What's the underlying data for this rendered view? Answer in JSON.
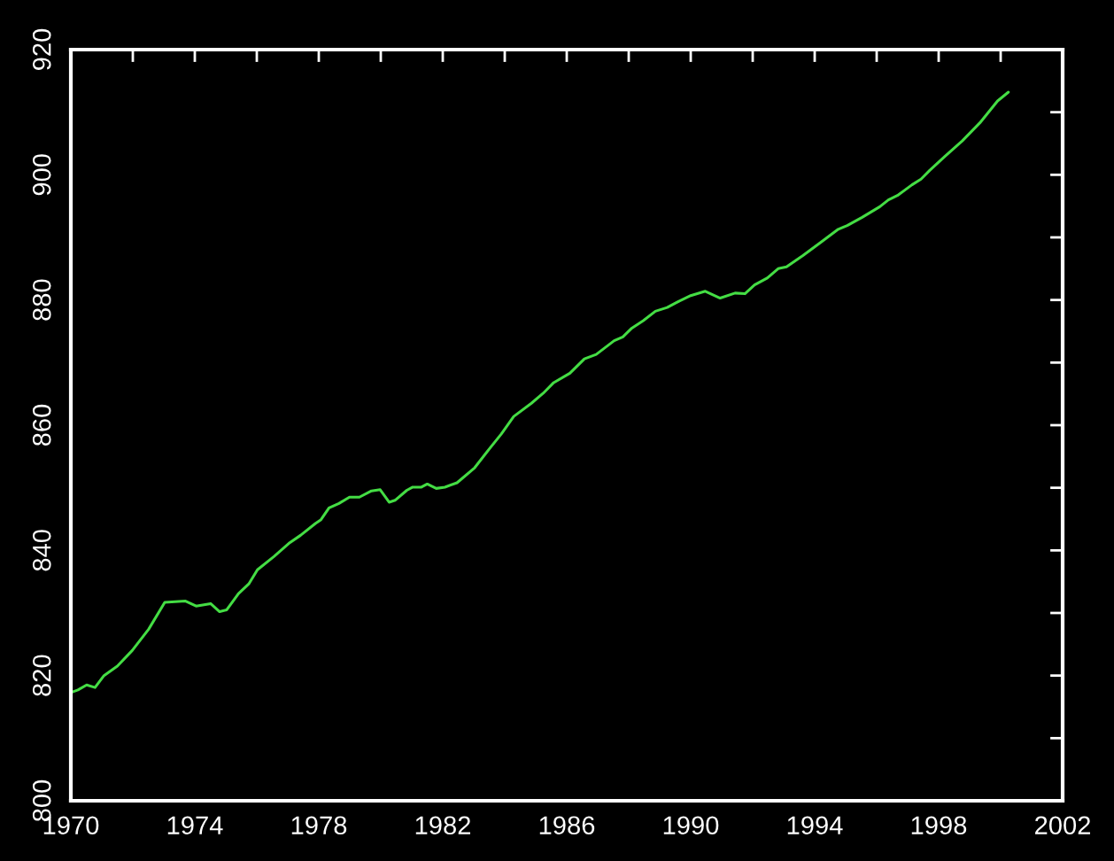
{
  "chart_data": {
    "type": "line",
    "x": [
      1970.0,
      1970.23,
      1970.51,
      1970.78,
      1971.07,
      1971.5,
      1971.98,
      1972.51,
      1973.03,
      1973.7,
      1974.04,
      1974.51,
      1974.8,
      1975.03,
      1975.41,
      1975.75,
      1976.02,
      1976.55,
      1977.03,
      1977.41,
      1977.89,
      1978.07,
      1978.33,
      1978.65,
      1978.99,
      1979.31,
      1979.7,
      1979.98,
      1980.27,
      1980.46,
      1980.84,
      1981.03,
      1981.31,
      1981.5,
      1981.79,
      1982.07,
      1982.46,
      1983.03,
      1983.5,
      1983.89,
      1984.29,
      1984.86,
      1985.24,
      1985.58,
      1986.1,
      1986.57,
      1986.95,
      1987.53,
      1987.81,
      1988.1,
      1988.47,
      1988.86,
      1989.24,
      1989.62,
      1990.0,
      1990.47,
      1990.95,
      1991.43,
      1991.75,
      1992.06,
      1992.47,
      1992.82,
      1993.09,
      1993.62,
      1994.19,
      1994.76,
      1995.05,
      1995.53,
      1996.1,
      1996.38,
      1996.67,
      1997.14,
      1997.43,
      1997.71,
      1998.19,
      1998.76,
      1999.33,
      1999.9,
      2000.25
    ],
    "series": [
      {
        "color": "#44dd44",
        "values": [
          817.3,
          817.7,
          818.5,
          818.1,
          820.0,
          821.5,
          824.0,
          827.4,
          831.7,
          831.9,
          831.1,
          831.5,
          830.2,
          830.5,
          833.1,
          834.7,
          836.9,
          839.0,
          841.1,
          842.4,
          844.3,
          844.9,
          846.8,
          847.5,
          848.5,
          848.5,
          849.5,
          849.7,
          847.7,
          848.0,
          849.6,
          850.1,
          850.1,
          850.6,
          849.9,
          850.1,
          850.8,
          853.2,
          856.2,
          858.6,
          861.4,
          863.5,
          865.1,
          866.8,
          868.3,
          870.6,
          871.3,
          873.5,
          874.1,
          875.5,
          876.7,
          878.2,
          878.8,
          879.8,
          880.7,
          881.4,
          880.3,
          881.1,
          881.0,
          882.4,
          883.5,
          885.0,
          885.3,
          887.1,
          889.2,
          891.3,
          891.9,
          893.2,
          894.9,
          896.0,
          896.7,
          898.4,
          899.3,
          900.7,
          902.9,
          905.4,
          908.3,
          911.8,
          913.2
        ]
      }
    ],
    "xlim": [
      1970,
      2002
    ],
    "xticks": [
      1970,
      {
        "value": 1972,
        "label": null
      },
      1974,
      {
        "value": 1976,
        "label": null
      },
      1978,
      {
        "value": 1980,
        "label": null
      },
      1982,
      {
        "value": 1984,
        "label": null
      },
      1986,
      {
        "value": 1988,
        "label": null
      },
      1990,
      {
        "value": 1992,
        "label": null
      },
      1994,
      {
        "value": 1996,
        "label": null
      },
      1998,
      {
        "value": 2000,
        "label": null
      },
      2002
    ],
    "ylim": [
      800,
      920
    ],
    "yticks": [
      800,
      {
        "value": 810,
        "label": null
      },
      820,
      {
        "value": 830,
        "label": null
      },
      840,
      {
        "value": 850,
        "label": null
      },
      860,
      {
        "value": 870,
        "label": null
      },
      880,
      {
        "value": 890,
        "label": null
      },
      900,
      {
        "value": 910,
        "label": null
      },
      920
    ],
    "grid": false,
    "line_style": "solid"
  }
}
